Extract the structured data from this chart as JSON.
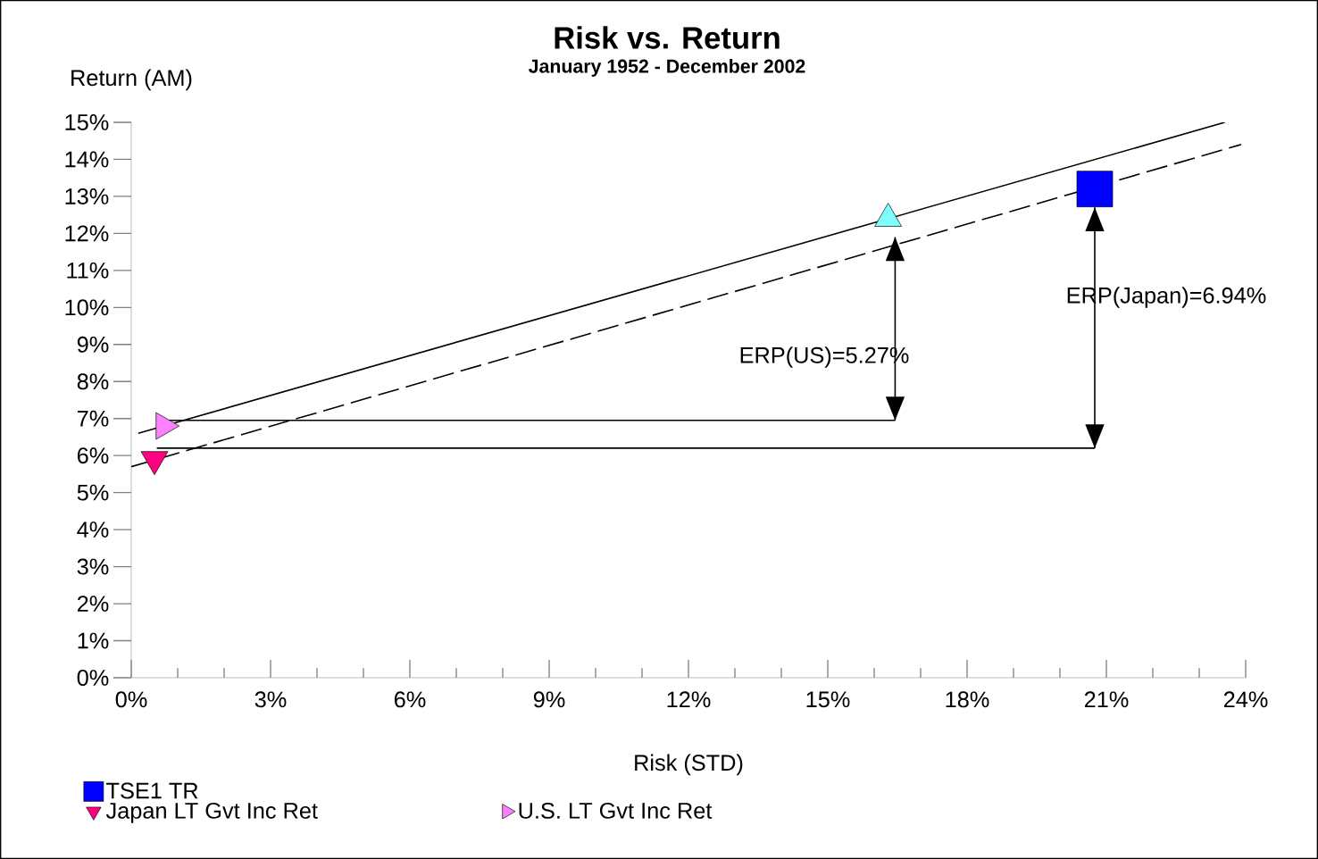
{
  "chart_data": {
    "type": "scatter",
    "title": "Risk vs. Return",
    "subtitle": "January 1952 - December 2002",
    "xlabel": "Risk (STD)",
    "ylabel": "Return (AM)",
    "xlim": [
      0,
      24
    ],
    "ylim": [
      0,
      15
    ],
    "xticks": [
      {
        "value": 0,
        "label": "0%"
      },
      {
        "value": 3,
        "label": "3%"
      },
      {
        "value": 6,
        "label": "6%"
      },
      {
        "value": 9,
        "label": "9%"
      },
      {
        "value": 12,
        "label": "12%"
      },
      {
        "value": 15,
        "label": "15%"
      },
      {
        "value": 18,
        "label": "18%"
      },
      {
        "value": 21,
        "label": "21%"
      },
      {
        "value": 24,
        "label": "24%"
      }
    ],
    "yticks": [
      {
        "value": 0,
        "label": "0%"
      },
      {
        "value": 1,
        "label": "1%"
      },
      {
        "value": 2,
        "label": "2%"
      },
      {
        "value": 3,
        "label": "3%"
      },
      {
        "value": 4,
        "label": "4%"
      },
      {
        "value": 5,
        "label": "5%"
      },
      {
        "value": 6,
        "label": "6%"
      },
      {
        "value": 7,
        "label": "7%"
      },
      {
        "value": 8,
        "label": "8%"
      },
      {
        "value": 9,
        "label": "9%"
      },
      {
        "value": 10,
        "label": "10%"
      },
      {
        "value": 11,
        "label": "11%"
      },
      {
        "value": 12,
        "label": "12%"
      },
      {
        "value": 13,
        "label": "13%"
      },
      {
        "value": 14,
        "label": "14%"
      },
      {
        "value": 15,
        "label": "15%"
      }
    ],
    "grid": false,
    "legend": "bottom left",
    "series": [
      {
        "name": "TSE1 TR",
        "type": "scatter",
        "marker": "square",
        "color": "#0000ff",
        "x": [
          20.75
        ],
        "values": [
          13.2
        ]
      },
      {
        "type": "scatter",
        "marker": "triangle",
        "color": "#80ffff",
        "x": [
          16.3
        ],
        "values": [
          12.4
        ]
      },
      {
        "name": "Japan LT Gvt Inc Ret",
        "type": "scatter",
        "marker": "triangle",
        "color": "#ff0080",
        "x": [
          0.5
        ],
        "values": [
          5.9
        ]
      },
      {
        "name": "U.S. LT Gvt Inc Ret",
        "type": "scatter",
        "marker": "triangle",
        "color": "#ff80ff",
        "x": [
          0.7
        ],
        "values": [
          6.8
        ]
      },
      {
        "type": "line",
        "line_style": "solid",
        "marker": "none",
        "color": "#000000",
        "x": [
          0.15,
          23.55
        ],
        "values": [
          6.6,
          15.0
        ]
      },
      {
        "type": "line",
        "line_style": "dashed",
        "marker": "none",
        "color": "#000000",
        "x": [
          0,
          23.9
        ],
        "values": [
          5.7,
          14.4
        ]
      },
      {
        "type": "line",
        "line_style": "solid",
        "marker": "none",
        "color": "#000000",
        "x": [
          0.8,
          16.45
        ],
        "values": [
          6.95,
          6.95
        ]
      },
      {
        "type": "line",
        "line_style": "solid",
        "marker": "none",
        "color": "#000000",
        "x": [
          0.55,
          20.75
        ],
        "values": [
          6.2,
          6.2
        ]
      },
      {
        "type": "line",
        "line_style": "solid",
        "marker": "none",
        "color": "#000000",
        "x": [
          16.45,
          16.45
        ],
        "values": [
          6.95,
          11.9
        ]
      },
      {
        "type": "line",
        "line_style": "solid",
        "marker": "none",
        "color": "#000000",
        "x": [
          20.75,
          20.75
        ],
        "values": [
          6.2,
          12.7
        ]
      }
    ],
    "annotations": [
      "ERP(US)=5.27%",
      "ERP(Japan)=6.94%"
    ]
  }
}
